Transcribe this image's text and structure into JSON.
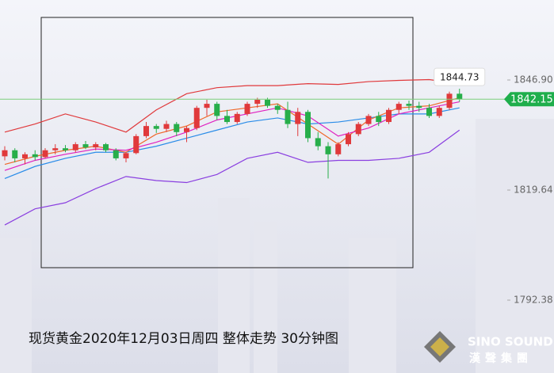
{
  "chart_data": {
    "type": "candlestick",
    "title": "现货黄金2020年12月03日周四 整体走势  30分钟图",
    "brand": "SINO SOUND",
    "brand_sub": "漢聲集團",
    "ylim": [
      1774.34,
      1866.71
    ],
    "yticks": [
      1792.38,
      1819.64,
      {
        "value": 1846.9,
        "label": "1846.90"
      }
    ],
    "up_color": "#e0393b",
    "down_color": "#27ae4a",
    "candles": {
      "open": [
        1828.0,
        1829.5,
        1827.5,
        1828.5,
        1827.8,
        1829.5,
        1830.0,
        1829.5,
        1831.0,
        1830.2,
        1831.0,
        1829.5,
        1827.5,
        1828.8,
        1833.0,
        1835.5,
        1834.8,
        1836.0,
        1834.0,
        1835.0,
        1840.0,
        1841.0,
        1838.0,
        1836.5,
        1838.5,
        1841.0,
        1842.0,
        1840.5,
        1839.5,
        1836.0,
        1839.0,
        1832.5,
        1830.5,
        1828.5,
        1831.0,
        1833.5,
        1836.0,
        1838.0,
        1836.5,
        1839.5,
        1841.0,
        1840.5,
        1840.0,
        1838.0,
        1840.0,
        1843.5
      ],
      "high": [
        1830.5,
        1830.0,
        1829.0,
        1829.5,
        1830.0,
        1831.0,
        1830.8,
        1831.5,
        1831.8,
        1831.5,
        1831.3,
        1830.0,
        1829.0,
        1833.5,
        1836.5,
        1836.0,
        1836.8,
        1836.5,
        1835.5,
        1840.5,
        1842.0,
        1841.5,
        1839.5,
        1839.0,
        1841.5,
        1842.5,
        1842.5,
        1841.0,
        1841.5,
        1840.0,
        1839.5,
        1834.0,
        1831.5,
        1831.5,
        1834.0,
        1836.5,
        1838.5,
        1839.0,
        1840.0,
        1841.5,
        1841.8,
        1841.5,
        1841.0,
        1840.5,
        1844.0,
        1844.73
      ],
      "low": [
        1827.0,
        1826.5,
        1826.0,
        1827.0,
        1827.5,
        1828.5,
        1829.0,
        1829.0,
        1829.8,
        1829.5,
        1829.0,
        1827.0,
        1826.5,
        1828.5,
        1832.5,
        1833.8,
        1834.0,
        1833.0,
        1831.5,
        1834.5,
        1838.0,
        1837.0,
        1836.0,
        1836.0,
        1838.0,
        1840.0,
        1840.0,
        1838.5,
        1835.0,
        1833.0,
        1831.5,
        1829.5,
        1822.5,
        1828.0,
        1830.5,
        1833.0,
        1835.5,
        1835.5,
        1836.0,
        1838.5,
        1839.5,
        1839.0,
        1837.5,
        1837.5,
        1839.5,
        1841.5
      ],
      "close": [
        1829.5,
        1827.5,
        1828.5,
        1827.8,
        1829.5,
        1830.0,
        1829.5,
        1831.0,
        1830.2,
        1831.0,
        1829.5,
        1827.5,
        1828.8,
        1833.0,
        1835.5,
        1834.8,
        1836.0,
        1834.0,
        1835.0,
        1840.0,
        1841.0,
        1838.0,
        1836.5,
        1838.5,
        1841.0,
        1842.0,
        1840.5,
        1839.5,
        1836.0,
        1839.0,
        1832.5,
        1830.5,
        1828.5,
        1831.0,
        1833.5,
        1836.0,
        1838.0,
        1836.5,
        1839.5,
        1841.0,
        1840.5,
        1840.0,
        1838.0,
        1840.0,
        1843.5,
        1842.15
      ]
    },
    "lines_x": [
      0,
      3,
      6,
      9,
      12,
      15,
      18,
      21,
      24,
      27,
      30,
      33,
      36,
      39,
      42,
      45
    ],
    "series": [
      {
        "color": "#e0393b",
        "values": [
          1834.0,
          1836.0,
          1838.5,
          1836.5,
          1834.0,
          1839.5,
          1843.5,
          1845.0,
          1845.5,
          1845.5,
          1846.0,
          1845.8,
          1846.5,
          1846.8,
          1847.0,
          1846.0
        ]
      },
      {
        "color": "#8a3fe0",
        "values": [
          1811.0,
          1815.0,
          1816.5,
          1820.0,
          1823.0,
          1822.0,
          1821.5,
          1823.5,
          1827.5,
          1829.0,
          1826.5,
          1827.0,
          1827.0,
          1827.5,
          1829.0,
          1834.5
        ]
      },
      {
        "color": "#2a8ce8",
        "values": [
          1822.5,
          1825.5,
          1827.5,
          1829.0,
          1829.0,
          1830.5,
          1832.5,
          1834.5,
          1836.5,
          1837.5,
          1836.0,
          1836.5,
          1837.5,
          1838.5,
          1838.5,
          1840.0
        ]
      },
      {
        "color": "#f0682a",
        "values": [
          1826.0,
          1828.0,
          1829.5,
          1830.5,
          1829.0,
          1833.5,
          1835.5,
          1839.0,
          1840.0,
          1841.0,
          1836.0,
          1831.0,
          1837.0,
          1840.0,
          1840.5,
          1842.5
        ]
      },
      {
        "color": "#e020c0",
        "values": [
          1824.5,
          1827.0,
          1828.5,
          1829.8,
          1829.5,
          1831.5,
          1834.0,
          1837.0,
          1838.5,
          1840.0,
          1838.0,
          1833.0,
          1835.0,
          1838.5,
          1840.0,
          1841.5
        ]
      }
    ]
  }
}
